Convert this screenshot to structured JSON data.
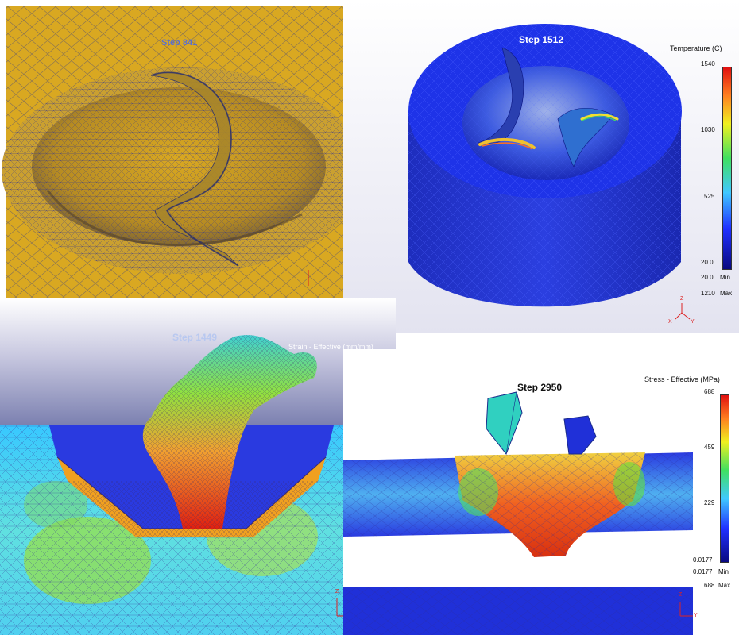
{
  "panels": {
    "top_left": {
      "step": "Step  841"
    },
    "top_right": {
      "step": "Step 1512",
      "legend_title": "Temperature (C)",
      "ticks": [
        "1540",
        "1030",
        "525",
        "20.0"
      ],
      "min_value": "20.0",
      "min_label": "Min",
      "max_value": "1210",
      "max_label": "Max",
      "axis": {
        "z": "Z",
        "x": "X",
        "y": "Y"
      }
    },
    "bottom_left": {
      "step": "Step 1449",
      "legend_title": "Strain - Effective (mm/mm)",
      "axis": {
        "z": "Z"
      }
    },
    "bottom_right": {
      "step": "Step 2950",
      "legend_title": "Stress - Effective (MPa)",
      "ticks": [
        "688",
        "459",
        "229",
        "0.0177"
      ],
      "min_value": "0.0177",
      "min_label": "Min",
      "max_value": "688",
      "max_label": "Max",
      "axis": {
        "z": "Z",
        "y": "Y"
      }
    }
  },
  "colors": {
    "yellow_part": "#d9a821",
    "mesh_blue": "#2a2f9e",
    "deep_blue": "#1a2ad6",
    "viewport_top": "#e8e8f2",
    "viewport_bottom": "#8a8fb5"
  }
}
